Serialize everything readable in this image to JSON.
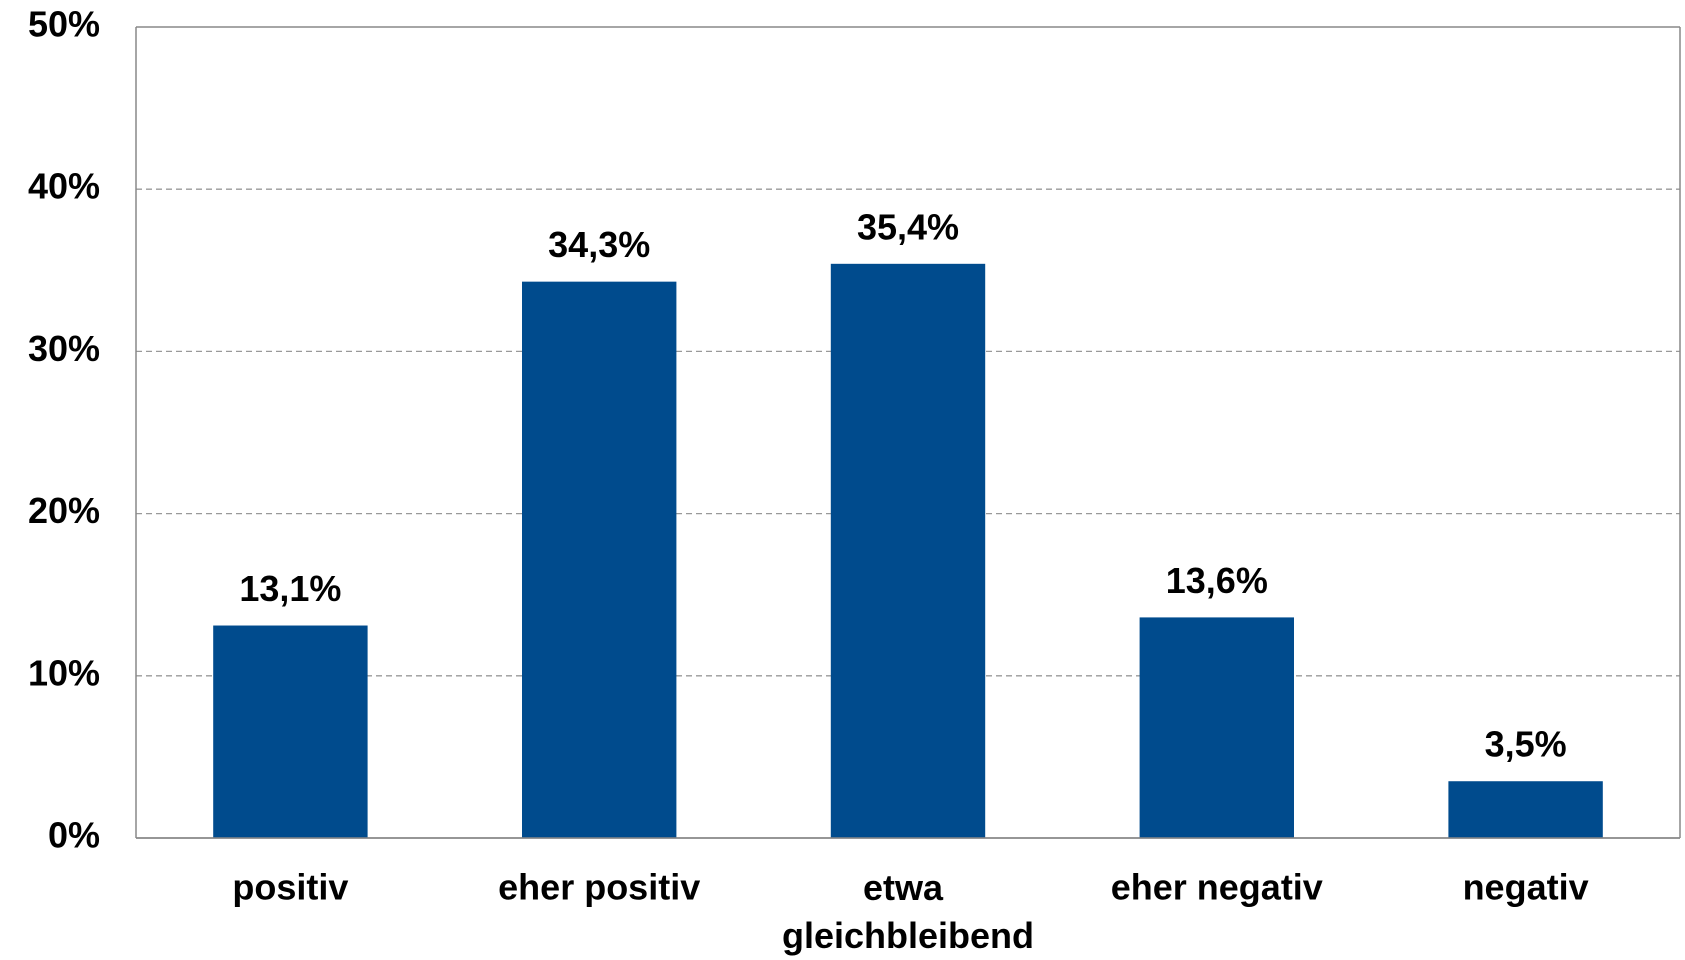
{
  "chart_data": {
    "type": "bar",
    "categories": [
      "positiv",
      "eher positiv",
      "etwa gleichbleibend",
      "eher negativ",
      "negativ"
    ],
    "values": [
      13.1,
      34.3,
      35.4,
      13.6,
      3.5
    ],
    "value_labels": [
      "13,1%",
      "34,3%",
      "35,4%",
      "13,6%",
      "3,5%"
    ],
    "color": "#004b8d",
    "ylim": [
      0,
      50
    ],
    "yticks": [
      {
        "value": 0,
        "label": "0%"
      },
      {
        "value": 10,
        "label": "10%"
      },
      {
        "value": 20,
        "label": "20%"
      },
      {
        "value": 30,
        "label": "30%"
      },
      {
        "value": 40,
        "label": "40%"
      },
      {
        "value": 50,
        "label": "50%"
      }
    ],
    "grid": true
  }
}
